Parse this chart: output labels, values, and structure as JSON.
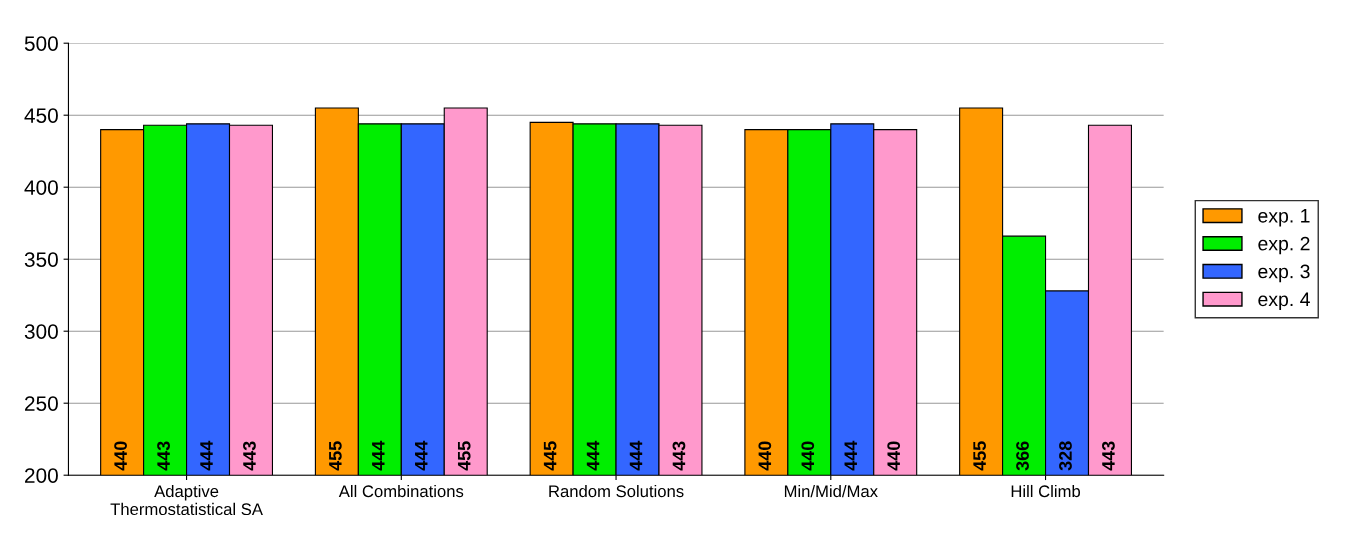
{
  "chart_data": {
    "type": "bar",
    "categories": [
      "Adaptive\nThermostatistical SA",
      "All Combinations",
      "Random Solutions",
      "Min/Mid/Max",
      "Hill Climb"
    ],
    "series": [
      {
        "name": "exp. 1",
        "color": "#ff9900",
        "values": [
          440,
          455,
          445,
          440,
          455
        ]
      },
      {
        "name": "exp. 2",
        "color": "#00ee00",
        "values": [
          443,
          444,
          444,
          440,
          366
        ]
      },
      {
        "name": "exp. 3",
        "color": "#3366ff",
        "values": [
          444,
          444,
          444,
          444,
          328
        ]
      },
      {
        "name": "exp. 4",
        "color": "#ff99cc",
        "values": [
          443,
          455,
          443,
          440,
          443
        ]
      }
    ],
    "ylim": [
      200,
      500
    ],
    "yticks": [
      200,
      250,
      300,
      350,
      400,
      450,
      500
    ],
    "grid": "y",
    "legend": "right",
    "data_labels": true
  }
}
